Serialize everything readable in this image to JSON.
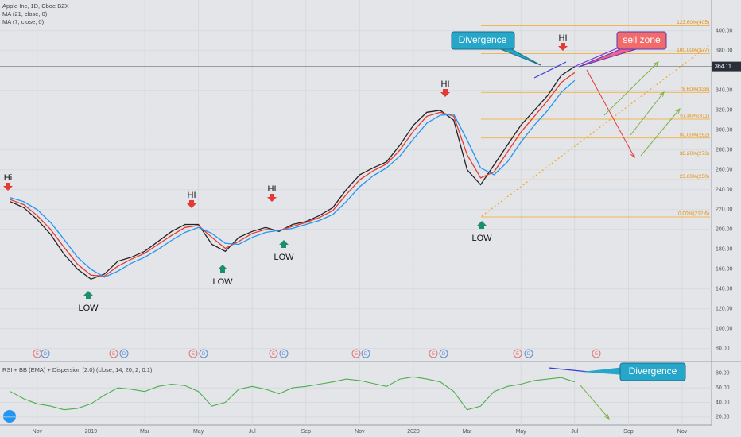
{
  "chart_data": [
    {
      "type": "line",
      "categories": [
        null,
        null,
        "Nov",
        null,
        null,
        null,
        "2019",
        null,
        null,
        null,
        "Mar",
        null,
        null,
        null,
        "May",
        null,
        null,
        null,
        "Jul",
        null,
        null,
        null,
        "Sep",
        null,
        null,
        null,
        "Nov",
        null,
        null,
        null,
        "2020",
        null,
        null,
        null,
        "Mar",
        null,
        null,
        null,
        "May",
        null,
        null,
        null,
        "Jul",
        null,
        null,
        null,
        "Sep",
        null,
        null,
        null,
        "Nov",
        null
      ],
      "series": [
        {
          "name": "Apple Inc, 1D, Cboe BZX",
          "color": "#222222",
          "values": [
            228,
            222,
            210,
            195,
            175,
            160,
            150,
            155,
            168,
            172,
            178,
            188,
            198,
            205,
            205,
            185,
            178,
            192,
            198,
            202,
            198,
            205,
            208,
            214,
            222,
            240,
            255,
            262,
            268,
            285,
            305,
            318,
            320,
            310,
            260,
            245,
            265,
            285,
            305,
            320,
            335,
            355,
            364,
            null,
            null,
            null,
            null,
            null,
            null,
            null,
            null,
            null
          ]
        },
        {
          "name": "MA (21, close, 0)",
          "color": "#e53935",
          "values": [
            230,
            225,
            214,
            200,
            182,
            165,
            154,
            153,
            163,
            170,
            176,
            185,
            194,
            202,
            204,
            192,
            181,
            188,
            196,
            200,
            199,
            203,
            207,
            212,
            219,
            235,
            250,
            259,
            266,
            280,
            299,
            314,
            318,
            314,
            275,
            252,
            258,
            278,
            298,
            314,
            330,
            348,
            358,
            null,
            null,
            null,
            null,
            null,
            null,
            null,
            null,
            null
          ]
        },
        {
          "name": "MA (7, close, 0)",
          "color": "#2196f3",
          "values": [
            232,
            228,
            220,
            207,
            190,
            172,
            160,
            152,
            158,
            166,
            172,
            180,
            189,
            197,
            202,
            196,
            186,
            185,
            192,
            197,
            199,
            201,
            205,
            209,
            215,
            228,
            243,
            254,
            262,
            274,
            291,
            307,
            315,
            316,
            290,
            262,
            255,
            268,
            288,
            305,
            320,
            338,
            350,
            null,
            null,
            null,
            null,
            null,
            null,
            null,
            null,
            null
          ]
        }
      ],
      "ylim": [
        67,
        431
      ],
      "yticks": [
        {
          "value": 80,
          "label": "80.00"
        },
        {
          "value": 100,
          "label": "100.00"
        },
        {
          "value": 120,
          "label": "120.00"
        },
        {
          "value": 140,
          "label": "140.00"
        },
        {
          "value": 160,
          "label": "160.00"
        },
        {
          "value": 180,
          "label": "180.00"
        },
        {
          "value": 200,
          "label": "200.00"
        },
        {
          "value": 220,
          "label": "220.00"
        },
        {
          "value": 240,
          "label": "240.00"
        },
        {
          "value": 260,
          "label": "260.00"
        },
        {
          "value": 280,
          "label": "280.00"
        },
        {
          "value": 300,
          "label": "300.00"
        },
        {
          "value": 320,
          "label": "320.00"
        },
        {
          "value": 340,
          "label": "340.00"
        },
        {
          "value": 380,
          "label": "380.00"
        },
        {
          "value": 400,
          "label": "400.00"
        }
      ],
      "grid": true,
      "last_price": 364.11,
      "fib_levels": [
        {
          "value": 212.6,
          "label": "0.00%(212.6)"
        },
        {
          "value": 250,
          "label": "23.60%(250)"
        },
        {
          "value": 273,
          "label": "38.20%(273)"
        },
        {
          "value": 292,
          "label": "50.00%(292)"
        },
        {
          "value": 311,
          "label": "61.80%(311)"
        },
        {
          "value": 338,
          "label": "78.60%(338)"
        },
        {
          "value": 377,
          "label": "100.00%(377)"
        },
        {
          "value": 405,
          "label": "123.60%(405)"
        }
      ],
      "fib_color": "#f5a623",
      "annotations": [
        "Hi",
        "LOW",
        "HI",
        "LOW",
        "HI",
        "LOW",
        "HI",
        "LOW",
        "HI",
        "Divergence",
        "sell zone"
      ]
    },
    {
      "type": "line",
      "title": "RSI + BB (EMA) + Dispersion (2.0) (close, 14, 20, 2, 0.1)",
      "series": [
        {
          "color": "#4caf50",
          "values": [
            55,
            45,
            38,
            35,
            30,
            32,
            38,
            50,
            60,
            58,
            55,
            62,
            65,
            63,
            55,
            35,
            40,
            58,
            62,
            58,
            52,
            60,
            62,
            65,
            68,
            72,
            70,
            66,
            62,
            72,
            75,
            72,
            68,
            55,
            30,
            35,
            55,
            62,
            65,
            70,
            72,
            74,
            68,
            null,
            null,
            null,
            null,
            null,
            null,
            null,
            null,
            null
          ]
        }
      ],
      "ylim": [
        9,
        96
      ],
      "yticks": [
        {
          "value": 20,
          "label": "20.00"
        },
        {
          "value": 40,
          "label": "40.00"
        },
        {
          "value": 60,
          "label": "60.00"
        },
        {
          "value": 80,
          "label": "80.00"
        }
      ],
      "grid": true,
      "annotations": [
        "Divergence"
      ]
    }
  ],
  "event_markers": [
    "E",
    "D",
    "E",
    "D",
    "E",
    "D",
    "E",
    "D",
    "E",
    "D",
    "E",
    "D",
    "E",
    "D",
    "E"
  ]
}
